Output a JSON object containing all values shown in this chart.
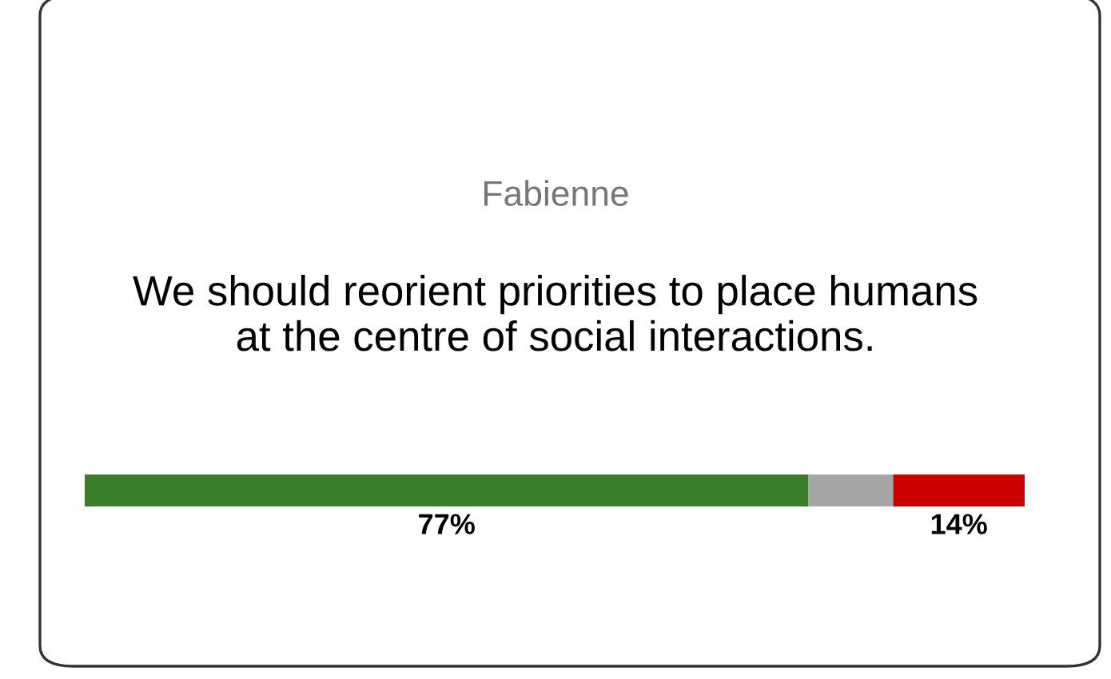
{
  "chart_data": {
    "type": "bar",
    "orientation": "horizontal",
    "stacked": true,
    "xlim": [
      0,
      100
    ],
    "title": "Fabienne",
    "subtitle": "We should reorient priorities to place humans at the centre of social interactions.",
    "categories": [
      null
    ],
    "series": [
      {
        "color": "#3a7d2a",
        "values": [
          77
        ],
        "value_labels": [
          "77%"
        ]
      },
      {
        "color": "#a6a6a6",
        "values": [
          9
        ],
        "value_labels": [
          null
        ]
      },
      {
        "color": "#cc0000",
        "values": [
          14
        ],
        "value_labels": [
          "14%"
        ]
      }
    ]
  }
}
